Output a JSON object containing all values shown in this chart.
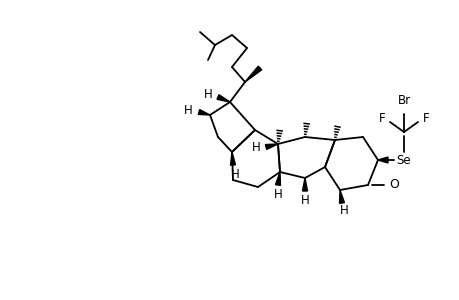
{
  "background_color": "#ffffff",
  "line_color": "#000000",
  "lw": 1.3,
  "figsize": [
    4.6,
    3.0
  ],
  "dpi": 100,
  "atoms": {
    "Se": "Se",
    "Br": "Br",
    "F": "F",
    "O": "O",
    "H": "H"
  }
}
